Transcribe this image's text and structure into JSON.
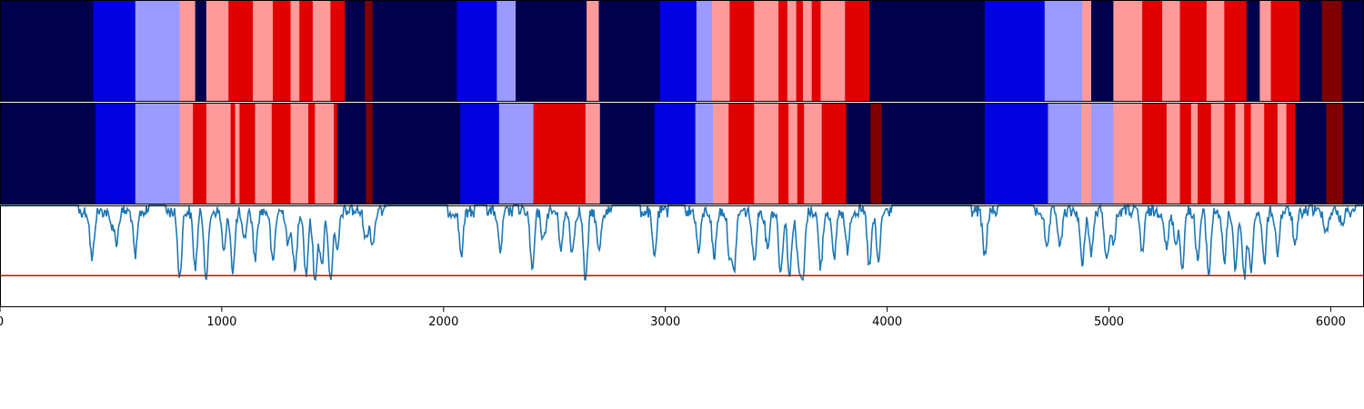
{
  "chart_data": [
    {
      "type": "heatmap",
      "name": "segmentation-track-1",
      "colormap": "seismic",
      "xlim": [
        0,
        6150
      ],
      "segments": [
        {
          "start": 0,
          "end": 420,
          "color": "#00004c"
        },
        {
          "start": 420,
          "end": 610,
          "color": "#0000e0"
        },
        {
          "start": 610,
          "end": 810,
          "color": "#9a9aff"
        },
        {
          "start": 810,
          "end": 880,
          "color": "#ff9a9a"
        },
        {
          "start": 880,
          "end": 930,
          "color": "#00004c"
        },
        {
          "start": 930,
          "end": 1030,
          "color": "#ff9a9a"
        },
        {
          "start": 1030,
          "end": 1140,
          "color": "#e00000"
        },
        {
          "start": 1140,
          "end": 1230,
          "color": "#ff9a9a"
        },
        {
          "start": 1230,
          "end": 1310,
          "color": "#e00000"
        },
        {
          "start": 1310,
          "end": 1350,
          "color": "#ff9a9a"
        },
        {
          "start": 1350,
          "end": 1410,
          "color": "#e00000"
        },
        {
          "start": 1410,
          "end": 1490,
          "color": "#ff9a9a"
        },
        {
          "start": 1490,
          "end": 1555,
          "color": "#e00000"
        },
        {
          "start": 1555,
          "end": 1645,
          "color": "#00004c"
        },
        {
          "start": 1645,
          "end": 1680,
          "color": "#7f0000"
        },
        {
          "start": 1680,
          "end": 2060,
          "color": "#00004c"
        },
        {
          "start": 2060,
          "end": 2240,
          "color": "#0000e0"
        },
        {
          "start": 2240,
          "end": 2325,
          "color": "#9a9aff"
        },
        {
          "start": 2325,
          "end": 2645,
          "color": "#00004c"
        },
        {
          "start": 2645,
          "end": 2700,
          "color": "#ff9a9a"
        },
        {
          "start": 2700,
          "end": 2975,
          "color": "#00004c"
        },
        {
          "start": 2975,
          "end": 3140,
          "color": "#0000e0"
        },
        {
          "start": 3140,
          "end": 3210,
          "color": "#9a9aff"
        },
        {
          "start": 3210,
          "end": 3290,
          "color": "#ff9a9a"
        },
        {
          "start": 3290,
          "end": 3400,
          "color": "#e00000"
        },
        {
          "start": 3400,
          "end": 3510,
          "color": "#ff9a9a"
        },
        {
          "start": 3510,
          "end": 3550,
          "color": "#e00000"
        },
        {
          "start": 3550,
          "end": 3590,
          "color": "#ff9a9a"
        },
        {
          "start": 3590,
          "end": 3620,
          "color": "#e00000"
        },
        {
          "start": 3620,
          "end": 3660,
          "color": "#ff9a9a"
        },
        {
          "start": 3660,
          "end": 3700,
          "color": "#e00000"
        },
        {
          "start": 3700,
          "end": 3810,
          "color": "#ff9a9a"
        },
        {
          "start": 3810,
          "end": 3920,
          "color": "#e00000"
        },
        {
          "start": 3920,
          "end": 3965,
          "color": "#00004c"
        },
        {
          "start": 3965,
          "end": 4440,
          "color": "#00004c"
        },
        {
          "start": 4440,
          "end": 4710,
          "color": "#0000e0"
        },
        {
          "start": 4710,
          "end": 4880,
          "color": "#9a9aff"
        },
        {
          "start": 4880,
          "end": 4920,
          "color": "#ff9a9a"
        },
        {
          "start": 4920,
          "end": 5020,
          "color": "#00004c"
        },
        {
          "start": 5020,
          "end": 5150,
          "color": "#ff9a9a"
        },
        {
          "start": 5150,
          "end": 5240,
          "color": "#e00000"
        },
        {
          "start": 5240,
          "end": 5320,
          "color": "#ff9a9a"
        },
        {
          "start": 5320,
          "end": 5440,
          "color": "#e00000"
        },
        {
          "start": 5440,
          "end": 5520,
          "color": "#ff9a9a"
        },
        {
          "start": 5520,
          "end": 5620,
          "color": "#e00000"
        },
        {
          "start": 5620,
          "end": 5660,
          "color": "#00004c"
        },
        {
          "start": 5660,
          "end": 5680,
          "color": "#00004c"
        },
        {
          "start": 5680,
          "end": 5730,
          "color": "#ff9a9a"
        },
        {
          "start": 5730,
          "end": 5860,
          "color": "#e00000"
        },
        {
          "start": 5860,
          "end": 5960,
          "color": "#00004c"
        },
        {
          "start": 5960,
          "end": 6050,
          "color": "#7f0000"
        },
        {
          "start": 6050,
          "end": 6150,
          "color": "#00004c"
        }
      ]
    },
    {
      "type": "heatmap",
      "name": "segmentation-track-2",
      "colormap": "seismic",
      "xlim": [
        0,
        6150
      ],
      "segments": [
        {
          "start": 0,
          "end": 430,
          "color": "#00004c"
        },
        {
          "start": 430,
          "end": 610,
          "color": "#0000e0"
        },
        {
          "start": 610,
          "end": 810,
          "color": "#9a9aff"
        },
        {
          "start": 810,
          "end": 870,
          "color": "#ff9a9a"
        },
        {
          "start": 870,
          "end": 930,
          "color": "#e00000"
        },
        {
          "start": 930,
          "end": 1040,
          "color": "#ff9a9a"
        },
        {
          "start": 1040,
          "end": 1060,
          "color": "#e00000"
        },
        {
          "start": 1060,
          "end": 1080,
          "color": "#ff9a9a"
        },
        {
          "start": 1080,
          "end": 1150,
          "color": "#e00000"
        },
        {
          "start": 1150,
          "end": 1225,
          "color": "#ff9a9a"
        },
        {
          "start": 1225,
          "end": 1310,
          "color": "#e00000"
        },
        {
          "start": 1310,
          "end": 1390,
          "color": "#ff9a9a"
        },
        {
          "start": 1390,
          "end": 1420,
          "color": "#e00000"
        },
        {
          "start": 1420,
          "end": 1505,
          "color": "#ff9a9a"
        },
        {
          "start": 1505,
          "end": 1520,
          "color": "#e00000"
        },
        {
          "start": 1520,
          "end": 1650,
          "color": "#00004c"
        },
        {
          "start": 1650,
          "end": 1680,
          "color": "#7f0000"
        },
        {
          "start": 1680,
          "end": 2075,
          "color": "#00004c"
        },
        {
          "start": 2075,
          "end": 2250,
          "color": "#0000e0"
        },
        {
          "start": 2250,
          "end": 2405,
          "color": "#9a9aff"
        },
        {
          "start": 2405,
          "end": 2640,
          "color": "#e00000"
        },
        {
          "start": 2640,
          "end": 2705,
          "color": "#ff9a9a"
        },
        {
          "start": 2705,
          "end": 2950,
          "color": "#00004c"
        },
        {
          "start": 2950,
          "end": 3135,
          "color": "#0000e0"
        },
        {
          "start": 3135,
          "end": 3215,
          "color": "#9a9aff"
        },
        {
          "start": 3215,
          "end": 3285,
          "color": "#ff9a9a"
        },
        {
          "start": 3285,
          "end": 3400,
          "color": "#e00000"
        },
        {
          "start": 3400,
          "end": 3510,
          "color": "#ff9a9a"
        },
        {
          "start": 3510,
          "end": 3555,
          "color": "#e00000"
        },
        {
          "start": 3555,
          "end": 3595,
          "color": "#ff9a9a"
        },
        {
          "start": 3595,
          "end": 3625,
          "color": "#e00000"
        },
        {
          "start": 3625,
          "end": 3705,
          "color": "#ff9a9a"
        },
        {
          "start": 3705,
          "end": 3815,
          "color": "#e00000"
        },
        {
          "start": 3815,
          "end": 3925,
          "color": "#00004c"
        },
        {
          "start": 3925,
          "end": 3975,
          "color": "#7f0000"
        },
        {
          "start": 3975,
          "end": 4440,
          "color": "#00004c"
        },
        {
          "start": 4440,
          "end": 4725,
          "color": "#0000e0"
        },
        {
          "start": 4725,
          "end": 4875,
          "color": "#9a9aff"
        },
        {
          "start": 4875,
          "end": 4920,
          "color": "#ff9a9a"
        },
        {
          "start": 4920,
          "end": 5020,
          "color": "#9a9aff"
        },
        {
          "start": 5020,
          "end": 5150,
          "color": "#ff9a9a"
        },
        {
          "start": 5150,
          "end": 5260,
          "color": "#e00000"
        },
        {
          "start": 5260,
          "end": 5320,
          "color": "#ff9a9a"
        },
        {
          "start": 5320,
          "end": 5370,
          "color": "#e00000"
        },
        {
          "start": 5370,
          "end": 5400,
          "color": "#ff9a9a"
        },
        {
          "start": 5400,
          "end": 5460,
          "color": "#e00000"
        },
        {
          "start": 5460,
          "end": 5520,
          "color": "#ff9a9a"
        },
        {
          "start": 5520,
          "end": 5570,
          "color": "#e00000"
        },
        {
          "start": 5570,
          "end": 5610,
          "color": "#ff9a9a"
        },
        {
          "start": 5610,
          "end": 5640,
          "color": "#e00000"
        },
        {
          "start": 5640,
          "end": 5700,
          "color": "#ff9a9a"
        },
        {
          "start": 5700,
          "end": 5760,
          "color": "#e00000"
        },
        {
          "start": 5760,
          "end": 5800,
          "color": "#ff9a9a"
        },
        {
          "start": 5800,
          "end": 5840,
          "color": "#e00000"
        },
        {
          "start": 5840,
          "end": 5980,
          "color": "#00004c"
        },
        {
          "start": 5980,
          "end": 6055,
          "color": "#7f0000"
        },
        {
          "start": 6055,
          "end": 6150,
          "color": "#00004c"
        }
      ]
    },
    {
      "type": "line",
      "name": "signal-panel",
      "line_color": "#1f77b4",
      "threshold_color": "#e00000",
      "xlim": [
        0,
        6150
      ],
      "ylim": [
        0,
        1
      ],
      "threshold": 0.31,
      "x_ticks": [
        0,
        1000,
        2000,
        3000,
        4000,
        5000,
        6000
      ],
      "tick_labels": [
        "0",
        "1000",
        "2000",
        "3000",
        "4000",
        "5000",
        "6000"
      ],
      "baseline": 1.0,
      "dips": [
        {
          "x": 415,
          "depth": 0.48
        },
        {
          "x": 500,
          "depth": 0.12
        },
        {
          "x": 525,
          "depth": 0.3
        },
        {
          "x": 610,
          "depth": 0.45
        },
        {
          "x": 810,
          "depth": 0.65
        },
        {
          "x": 880,
          "depth": 0.55
        },
        {
          "x": 930,
          "depth": 0.68
        },
        {
          "x": 1010,
          "depth": 0.4
        },
        {
          "x": 1050,
          "depth": 0.58
        },
        {
          "x": 1100,
          "depth": 0.3
        },
        {
          "x": 1150,
          "depth": 0.45
        },
        {
          "x": 1230,
          "depth": 0.52
        },
        {
          "x": 1300,
          "depth": 0.33
        },
        {
          "x": 1330,
          "depth": 0.6
        },
        {
          "x": 1380,
          "depth": 0.62
        },
        {
          "x": 1420,
          "depth": 0.7
        },
        {
          "x": 1450,
          "depth": 0.55
        },
        {
          "x": 1490,
          "depth": 0.68
        },
        {
          "x": 1520,
          "depth": 0.4
        },
        {
          "x": 1650,
          "depth": 0.28
        },
        {
          "x": 1680,
          "depth": 0.32
        },
        {
          "x": 2080,
          "depth": 0.42
        },
        {
          "x": 2255,
          "depth": 0.4
        },
        {
          "x": 2400,
          "depth": 0.6
        },
        {
          "x": 2450,
          "depth": 0.3
        },
        {
          "x": 2530,
          "depth": 0.35
        },
        {
          "x": 2580,
          "depth": 0.4
        },
        {
          "x": 2640,
          "depth": 0.72
        },
        {
          "x": 2700,
          "depth": 0.4
        },
        {
          "x": 2950,
          "depth": 0.45
        },
        {
          "x": 3150,
          "depth": 0.4
        },
        {
          "x": 3220,
          "depth": 0.45
        },
        {
          "x": 3290,
          "depth": 0.42
        },
        {
          "x": 3310,
          "depth": 0.55
        },
        {
          "x": 3400,
          "depth": 0.5
        },
        {
          "x": 3460,
          "depth": 0.35
        },
        {
          "x": 3520,
          "depth": 0.6
        },
        {
          "x": 3560,
          "depth": 0.65
        },
        {
          "x": 3600,
          "depth": 0.5
        },
        {
          "x": 3620,
          "depth": 0.67
        },
        {
          "x": 3700,
          "depth": 0.55
        },
        {
          "x": 3760,
          "depth": 0.48
        },
        {
          "x": 3820,
          "depth": 0.38
        },
        {
          "x": 3920,
          "depth": 0.55
        },
        {
          "x": 3960,
          "depth": 0.5
        },
        {
          "x": 4440,
          "depth": 0.45
        },
        {
          "x": 4720,
          "depth": 0.4
        },
        {
          "x": 4780,
          "depth": 0.35
        },
        {
          "x": 4880,
          "depth": 0.55
        },
        {
          "x": 4920,
          "depth": 0.42
        },
        {
          "x": 4990,
          "depth": 0.5
        },
        {
          "x": 5020,
          "depth": 0.32
        },
        {
          "x": 5150,
          "depth": 0.4
        },
        {
          "x": 5260,
          "depth": 0.38
        },
        {
          "x": 5300,
          "depth": 0.3
        },
        {
          "x": 5330,
          "depth": 0.55
        },
        {
          "x": 5400,
          "depth": 0.48
        },
        {
          "x": 5450,
          "depth": 0.62
        },
        {
          "x": 5520,
          "depth": 0.5
        },
        {
          "x": 5570,
          "depth": 0.55
        },
        {
          "x": 5610,
          "depth": 0.65
        },
        {
          "x": 5640,
          "depth": 0.58
        },
        {
          "x": 5700,
          "depth": 0.5
        },
        {
          "x": 5760,
          "depth": 0.4
        },
        {
          "x": 5840,
          "depth": 0.35
        },
        {
          "x": 5980,
          "depth": 0.2
        },
        {
          "x": 6050,
          "depth": 0.12
        }
      ]
    }
  ]
}
